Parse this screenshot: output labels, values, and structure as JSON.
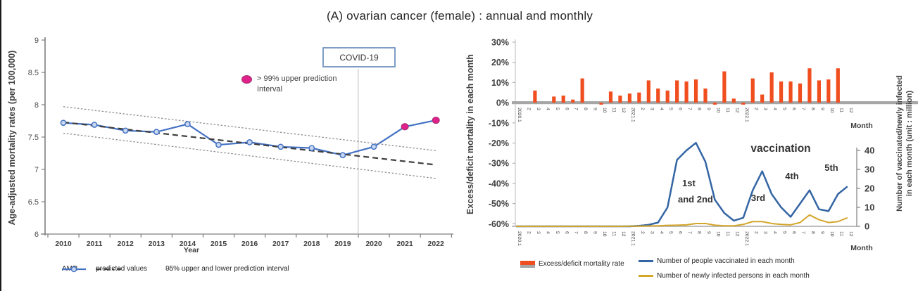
{
  "title": "(A) ovarian cancer (female) : annual and monthly",
  "annual": {
    "ylabel": "Age-adjusted mortality rates (per 100,000)",
    "xlabel": "Year",
    "covid_label": "COVID-19",
    "pink_annotation_line1": "> 99% upper prediction",
    "pink_annotation_line2": "Interval",
    "legend": [
      "AMR",
      "predicted values",
      "95% upper and lower prediction interval"
    ]
  },
  "monthly": {
    "ylabel_left": "Excess/deficit mortality in each month",
    "ylabel_right_line1": "Number of vaccinated/newly infected",
    "ylabel_right_line2": "in each month   (unit : million)",
    "xlabel_top": "Month",
    "xlabel_bottom": "Month",
    "annotations": {
      "vaccination": "vaccination",
      "first": "1st",
      "second": "and 2nd",
      "third": "3rd",
      "fourth": "4th",
      "fifth": "5th"
    },
    "legend": [
      "Excess/deficit mortality rate",
      "Number of people vaccinated in each month",
      "Number of newly infected persons in each month"
    ]
  },
  "colors": {
    "amr_line": "#4472C4",
    "amr_marker_fill": "#CBD9F0",
    "pink": "#E0218A",
    "pink_edge": "#A23276",
    "predicted": "#3F3F3F",
    "band": "#8C8C8C",
    "covid_border": "#7F9DC4",
    "covid_vline": "#C9C9C9",
    "bar": "#F04E1E",
    "baseline": "#A6A6A6",
    "vaccinated": "#3465A4",
    "infected": "#D4A62A",
    "axis": "#7F7F7F",
    "tick_text": "#404040"
  },
  "chart_data": [
    {
      "id": "annual",
      "type": "line",
      "title": "",
      "xlabel": "Year",
      "ylabel": "Age-adjusted mortality rates (per 100,000)",
      "x": [
        2010,
        2011,
        2012,
        2013,
        2014,
        2015,
        2016,
        2017,
        2018,
        2019,
        2020,
        2021,
        2022
      ],
      "ylim": [
        6,
        9
      ],
      "yticks": [
        9,
        8.5,
        8,
        7.5,
        7,
        6.5,
        6
      ],
      "grid": false,
      "legend_position": "bottom",
      "series": [
        {
          "name": "AMR",
          "style": "solid-markers",
          "values": [
            7.72,
            7.69,
            7.6,
            7.58,
            7.7,
            7.38,
            7.42,
            7.35,
            7.33,
            7.22,
            7.35,
            7.66,
            7.76
          ]
        },
        {
          "name": "predicted values",
          "style": "dashed",
          "values": [
            7.73,
            7.675,
            7.62,
            7.565,
            7.51,
            7.455,
            7.4,
            7.345,
            7.29,
            7.235,
            7.18,
            7.125,
            7.07
          ]
        },
        {
          "name": "95% upper prediction interval",
          "style": "dotted",
          "values": [
            7.97,
            7.913,
            7.857,
            7.8,
            7.743,
            7.687,
            7.63,
            7.573,
            7.517,
            7.46,
            7.403,
            7.347,
            7.29
          ]
        },
        {
          "name": "95% lower prediction interval",
          "style": "dotted",
          "values": [
            7.56,
            7.502,
            7.443,
            7.385,
            7.327,
            7.268,
            7.21,
            7.152,
            7.093,
            7.035,
            6.977,
            6.918,
            6.86
          ]
        }
      ],
      "pink_marker_years": [
        2021,
        2022
      ],
      "covid_line_x": 2019.5
    },
    {
      "id": "monthly_bars",
      "type": "bar",
      "xlabel": "Month",
      "ylabel": "Excess/deficit mortality in each month",
      "categories": [
        "2020.1",
        "2",
        "3",
        "4",
        "5",
        "6",
        "7",
        "8",
        "9",
        "10",
        "11",
        "12",
        "2021.1",
        "2",
        "3",
        "4",
        "5",
        "6",
        "7",
        "8",
        "9",
        "10",
        "11",
        "12",
        "2022.1",
        "2",
        "3",
        "4",
        "5",
        "6",
        "7",
        "8",
        "9",
        "10",
        "11",
        "12"
      ],
      "values": [
        0,
        0,
        6,
        0,
        3,
        3.5,
        1.5,
        12,
        0,
        -1,
        5.5,
        3.5,
        4.5,
        5,
        11,
        7,
        6,
        11,
        10.5,
        11.5,
        7,
        -1,
        15.5,
        2,
        -1,
        12,
        4,
        15,
        10.5,
        10.5,
        9.5,
        17,
        11,
        11.5,
        17,
        0
      ],
      "value_unit": "%",
      "ylim": [
        -60,
        30
      ],
      "yticks": [
        30,
        20,
        10,
        0,
        -10,
        -20,
        -30,
        -40,
        -50,
        -60
      ]
    },
    {
      "id": "monthly_lines",
      "type": "line",
      "xlabel": "Month",
      "ylabel_right": "Number of vaccinated/newly infected in each month (unit : million)",
      "categories": [
        "2020.1",
        "2",
        "3",
        "4",
        "5",
        "6",
        "7",
        "8",
        "9",
        "10",
        "11",
        "12",
        "2021.1",
        "2",
        "3",
        "4",
        "5",
        "6",
        "7",
        "8",
        "9",
        "10",
        "11",
        "12",
        "2022.1",
        "2",
        "3",
        "4",
        "5",
        "6",
        "7",
        "8",
        "9",
        "10",
        "11",
        "12"
      ],
      "ylim_right": [
        0,
        40
      ],
      "yticks_right": [
        0,
        10,
        20,
        30,
        40
      ],
      "series": [
        {
          "name": "Number of people vaccinated in each month",
          "values": [
            0,
            0,
            0,
            0,
            0,
            0,
            0,
            0,
            0,
            0,
            0,
            0,
            0,
            0.3,
            0.8,
            2,
            10,
            35,
            40,
            44,
            34,
            14,
            7,
            3,
            4.5,
            19,
            29,
            17,
            10,
            5,
            12,
            19,
            9,
            8,
            17,
            21
          ]
        },
        {
          "name": "Number of newly infected persons in each month",
          "values": [
            0,
            0,
            0,
            0,
            0,
            0,
            0,
            0,
            0,
            0,
            0,
            0,
            0.1,
            0.1,
            0.2,
            0.3,
            0.5,
            0.6,
            0.8,
            1.5,
            1.5,
            0.6,
            0.3,
            0.3,
            1,
            2.5,
            2.5,
            1.5,
            1,
            0.8,
            2,
            6,
            3.5,
            2,
            2.5,
            4.5
          ]
        }
      ],
      "annotations": [
        "vaccination",
        "1st",
        "and 2nd",
        "3rd",
        "4th",
        "5th"
      ]
    }
  ]
}
